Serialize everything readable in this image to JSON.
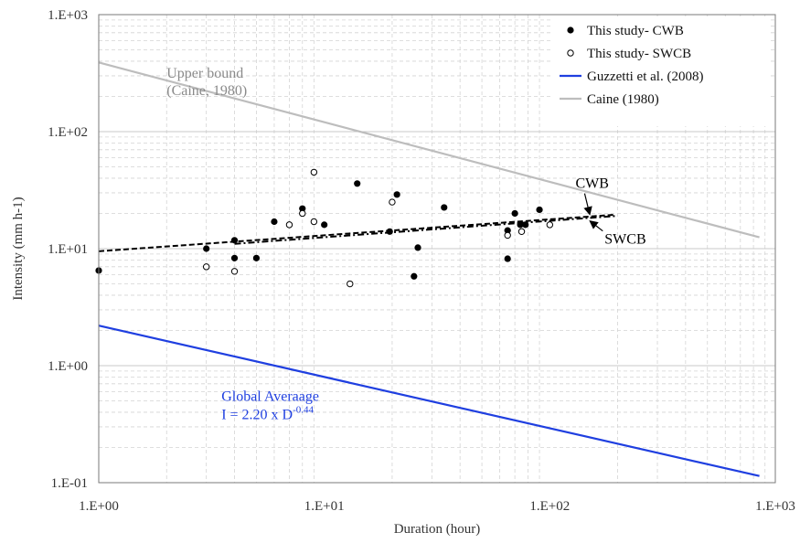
{
  "chart_data": {
    "type": "scatter",
    "title": "",
    "xlabel": "Duration (hour)",
    "ylabel": "Intensity (mm h-1)",
    "x_scale": "log",
    "y_scale": "log",
    "xlim": [
      1,
      1000
    ],
    "ylim": [
      0.1,
      1000
    ],
    "grid": true,
    "legend_position": "top-right",
    "x_ticks": [
      {
        "value": 1,
        "label": "1.E+00"
      },
      {
        "value": 10,
        "label": "1.E+01"
      },
      {
        "value": 100,
        "label": "1.E+02"
      },
      {
        "value": 1000,
        "label": "1.E+03"
      }
    ],
    "y_ticks": [
      {
        "value": 0.1,
        "label": "1.E-01"
      },
      {
        "value": 1,
        "label": "1.E+00"
      },
      {
        "value": 10,
        "label": "1.E+01"
      },
      {
        "value": 100,
        "label": "1.E+02"
      },
      {
        "value": 1000,
        "label": "1.E+03"
      }
    ],
    "series": [
      {
        "name": "This study- CWB",
        "kind": "scatter",
        "marker": "filled-circle",
        "color": "#000000",
        "points": [
          {
            "x": 1.0,
            "y": 6.5
          },
          {
            "x": 3.0,
            "y": 10.0
          },
          {
            "x": 4.0,
            "y": 11.8
          },
          {
            "x": 4.0,
            "y": 8.3
          },
          {
            "x": 5.0,
            "y": 8.3
          },
          {
            "x": 6.0,
            "y": 17.0
          },
          {
            "x": 8.0,
            "y": 22.0
          },
          {
            "x": 10.0,
            "y": 16.0
          },
          {
            "x": 14.0,
            "y": 36.0
          },
          {
            "x": 19.5,
            "y": 14.0
          },
          {
            "x": 21.0,
            "y": 29.0
          },
          {
            "x": 25.0,
            "y": 5.8
          },
          {
            "x": 26.0,
            "y": 10.2
          },
          {
            "x": 34.0,
            "y": 22.5
          },
          {
            "x": 65.0,
            "y": 8.2
          },
          {
            "x": 65.0,
            "y": 14.3
          },
          {
            "x": 70.0,
            "y": 20.0
          },
          {
            "x": 74.0,
            "y": 16.0
          },
          {
            "x": 78.0,
            "y": 16.0
          },
          {
            "x": 90.0,
            "y": 21.5
          }
        ]
      },
      {
        "name": "This study- SWCB",
        "kind": "scatter",
        "marker": "open-circle",
        "color": "#000000",
        "points": [
          {
            "x": 3.0,
            "y": 7.0
          },
          {
            "x": 4.0,
            "y": 6.4
          },
          {
            "x": 7.0,
            "y": 16.0
          },
          {
            "x": 8.0,
            "y": 20.0
          },
          {
            "x": 9.0,
            "y": 45.0
          },
          {
            "x": 9.0,
            "y": 17.0
          },
          {
            "x": 13.0,
            "y": 5.0
          },
          {
            "x": 20.0,
            "y": 25.0
          },
          {
            "x": 65.0,
            "y": 13.0
          },
          {
            "x": 75.0,
            "y": 14.0
          },
          {
            "x": 100.0,
            "y": 16.0
          }
        ]
      },
      {
        "name": "Guzzetti et al. (2008)",
        "kind": "line",
        "color": "#1f3fe0",
        "points": [
          {
            "x": 1,
            "y": 2.2
          },
          {
            "x": 850,
            "y": 0.114
          }
        ]
      },
      {
        "name": "Caine (1980)",
        "kind": "line",
        "color": "#bdbdbd",
        "points": [
          {
            "x": 1,
            "y": 390
          },
          {
            "x": 850,
            "y": 12.5
          }
        ]
      },
      {
        "name": "",
        "kind": "line",
        "style": "dashed",
        "color": "#000000",
        "points": [
          {
            "x": 1,
            "y": 9.5
          },
          {
            "x": 195,
            "y": 19.5
          }
        ]
      },
      {
        "name": "",
        "kind": "line",
        "style": "dash-dot",
        "color": "#000000",
        "points": [
          {
            "x": 4,
            "y": 11.0
          },
          {
            "x": 195,
            "y": 19.0
          }
        ]
      }
    ],
    "annotations": [
      {
        "id": "upper-bound-line1",
        "text": "Upper bound",
        "color": "#8a8a8a",
        "at": {
          "x": 2.0,
          "y": 290
        }
      },
      {
        "id": "upper-bound-line2",
        "text": "(Caine, 1980)",
        "color": "#8a8a8a",
        "at": {
          "x": 2.0,
          "y": 205
        }
      },
      {
        "id": "cwb",
        "text": "CWB",
        "color": "#000000",
        "at": {
          "x": 130,
          "y": 33
        },
        "arrow_to": {
          "x": 150,
          "y": 20
        }
      },
      {
        "id": "swcb",
        "text": "SWCB",
        "color": "#000000",
        "at": {
          "x": 175,
          "y": 11
        },
        "arrow_to": {
          "x": 152,
          "y": 17
        }
      },
      {
        "id": "global-1",
        "text": "Global Averaage",
        "color": "#1f3fe0",
        "at": {
          "x": 3.5,
          "y": 0.5
        }
      },
      {
        "id": "global-2",
        "text": "I = 2.20 x D",
        "sup": "-0.44",
        "color": "#1f3fe0",
        "at": {
          "x": 3.5,
          "y": 0.35
        }
      }
    ]
  }
}
